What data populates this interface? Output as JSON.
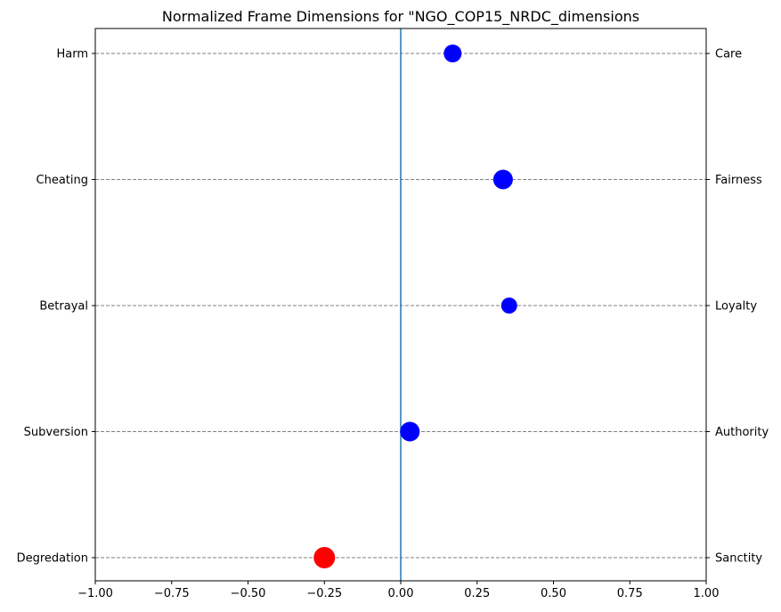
{
  "chart_data": {
    "type": "scatter",
    "title": "Normalized Frame Dimensions for \"NGO_COP15_NRDC_dimensions",
    "xlim": [
      -1.0,
      1.0
    ],
    "x_ticks": [
      -1.0,
      -0.75,
      -0.5,
      -0.25,
      0.0,
      0.25,
      0.5,
      0.75,
      1.0
    ],
    "x_tick_labels": [
      "−1.00",
      "−0.75",
      "−0.50",
      "−0.25",
      "0.00",
      "0.25",
      "0.50",
      "0.75",
      "1.00"
    ],
    "left_labels": [
      "Harm",
      "Cheating",
      "Betrayal",
      "Subversion",
      "Degredation"
    ],
    "right_labels": [
      "Care",
      "Fairness",
      "Loyalty",
      "Authority",
      "Sanctity"
    ],
    "points": [
      {
        "dimension": "Care",
        "value": 0.17,
        "color": "#0000ff",
        "size": 10
      },
      {
        "dimension": "Fairness",
        "value": 0.335,
        "color": "#0000ff",
        "size": 11
      },
      {
        "dimension": "Loyalty",
        "value": 0.355,
        "color": "#0000ff",
        "size": 9
      },
      {
        "dimension": "Authority",
        "value": 0.03,
        "color": "#0000ff",
        "size": 11
      },
      {
        "dimension": "Sanctity",
        "value": -0.25,
        "color": "#ff0000",
        "size": 12
      }
    ],
    "zero_line": 0.0,
    "grid": "horizontal dashed",
    "colors": {
      "zero_line": "#1f77b4",
      "grid": "#808080",
      "positive": "#0000ff",
      "negative": "#ff0000"
    }
  }
}
